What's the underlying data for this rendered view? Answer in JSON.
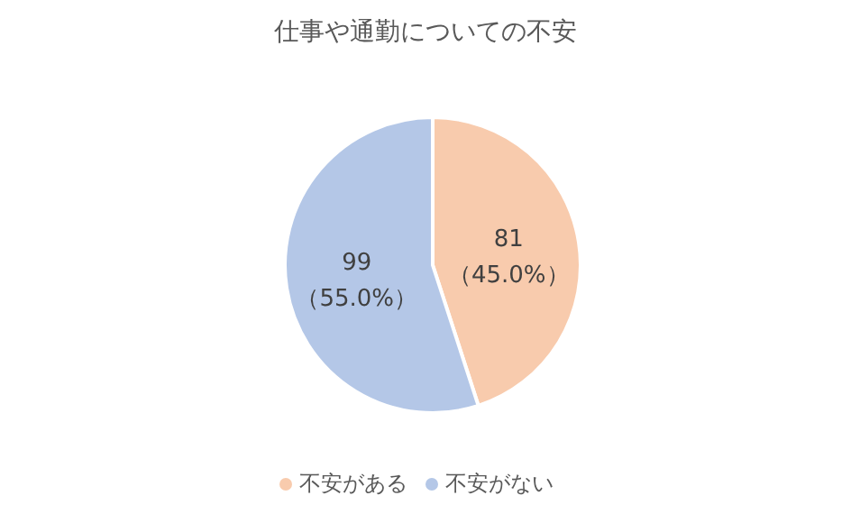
{
  "chart_data": {
    "type": "pie",
    "title": "仕事や通勤についての不安",
    "categories": [
      "不安がある",
      "不安がない"
    ],
    "values": [
      81,
      99
    ],
    "colors": [
      "#f8cbad",
      "#b4c7e7"
    ],
    "value_labels": [
      "81\n（45.0%）",
      "99\n（55.0%）"
    ],
    "legend": "bottom"
  }
}
